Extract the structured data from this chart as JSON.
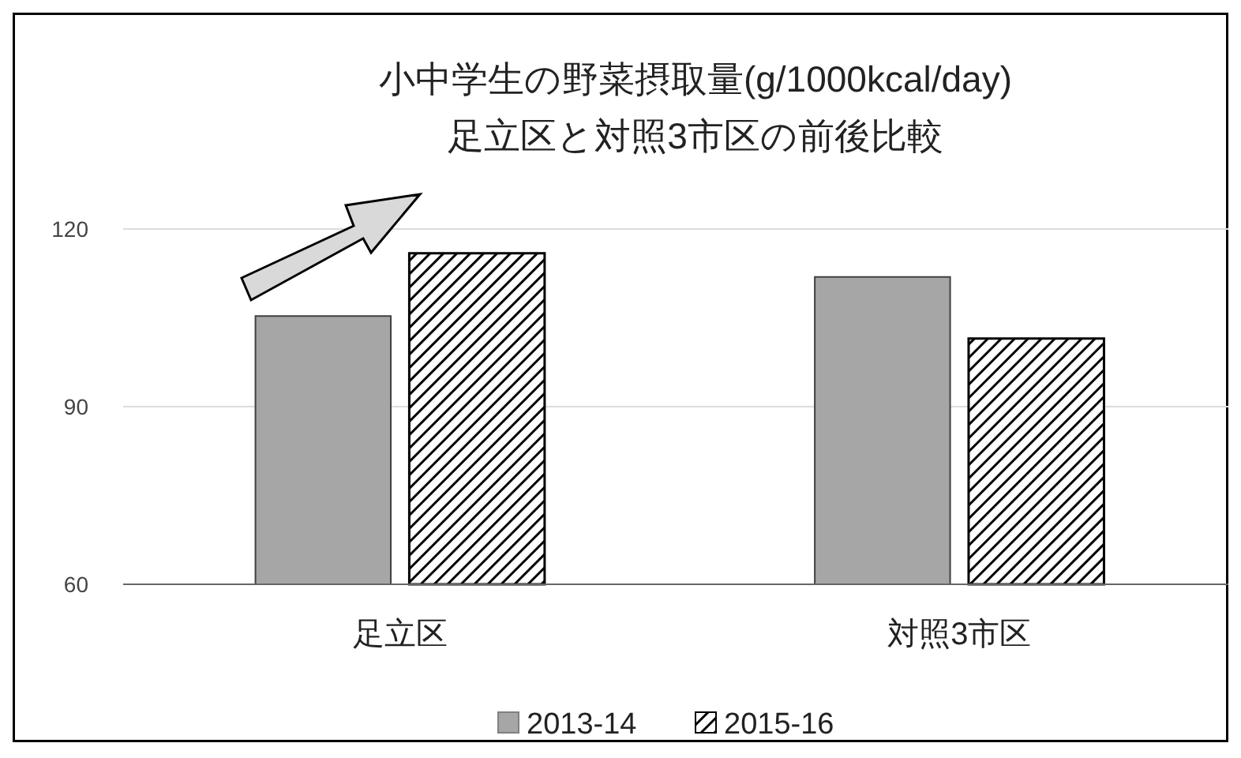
{
  "chart_data": {
    "type": "bar",
    "title": "小中学生の野菜摂取量(g/1000kcal/day)",
    "subtitle": "足立区と対照3市区の前後比較",
    "categories": [
      "足立区",
      "対照3市区"
    ],
    "series": [
      {
        "name": "2013-14",
        "color": "#a6a6a6",
        "values": [
          105.3,
          111.9
        ]
      },
      {
        "name": "2015-16",
        "color": "#000000",
        "values": [
          115.9,
          101.5
        ]
      }
    ],
    "ylim": [
      60,
      120
    ],
    "yticks": [
      60,
      90,
      120
    ],
    "grid": "y",
    "legend": "bottom"
  }
}
